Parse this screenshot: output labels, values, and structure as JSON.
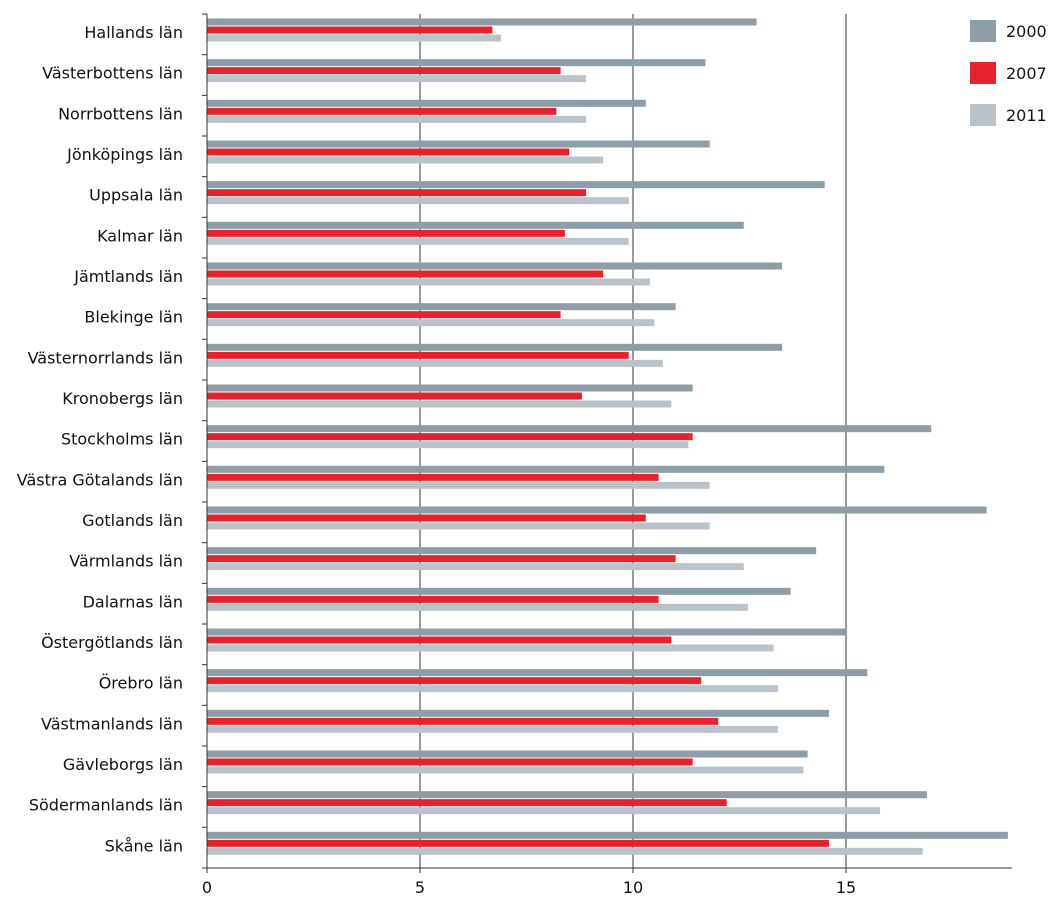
{
  "chart_data": {
    "type": "bar",
    "orientation": "horizontal",
    "categories": [
      "Hallands län",
      "Västerbottens län",
      "Norrbottens län",
      "Jönköpings län",
      "Uppsala län",
      "Kalmar län",
      "Jämtlands län",
      "Blekinge län",
      "Västernorrlands län",
      "Kronobergs län",
      "Stockholms län",
      "Västra Götalands län",
      "Gotlands län",
      "Värmlands län",
      "Dalarnas län",
      "Östergötlands län",
      "Örebro län",
      "Västmanlands län",
      "Gävleborgs län",
      "Södermanlands län",
      "Skåne län"
    ],
    "series": [
      {
        "name": "2000",
        "color": "#8d9ea8",
        "values": [
          12.9,
          11.7,
          10.3,
          11.8,
          14.5,
          12.6,
          13.5,
          11.0,
          13.5,
          11.4,
          17.0,
          15.9,
          18.3,
          14.3,
          13.7,
          15.0,
          15.5,
          14.6,
          14.1,
          16.9,
          18.8
        ]
      },
      {
        "name": "2007",
        "color": "#e4232d",
        "values": [
          6.7,
          8.3,
          8.2,
          8.5,
          8.9,
          8.4,
          9.3,
          8.3,
          9.9,
          8.8,
          11.4,
          10.6,
          10.3,
          11.0,
          10.6,
          10.9,
          11.6,
          12.0,
          11.4,
          12.2,
          14.6
        ]
      },
      {
        "name": "2011",
        "color": "#b9c3c9",
        "values": [
          6.9,
          8.9,
          8.9,
          9.3,
          9.9,
          9.9,
          10.4,
          10.5,
          10.7,
          10.9,
          11.3,
          11.8,
          11.8,
          12.6,
          12.7,
          13.3,
          13.4,
          13.4,
          14.0,
          15.8,
          16.8
        ]
      }
    ],
    "x_ticks": [
      0,
      5,
      10,
      15
    ],
    "xlim": [
      0,
      19
    ],
    "grid": true,
    "legend_position": "top-right",
    "title": "",
    "xlabel": "",
    "ylabel": ""
  }
}
